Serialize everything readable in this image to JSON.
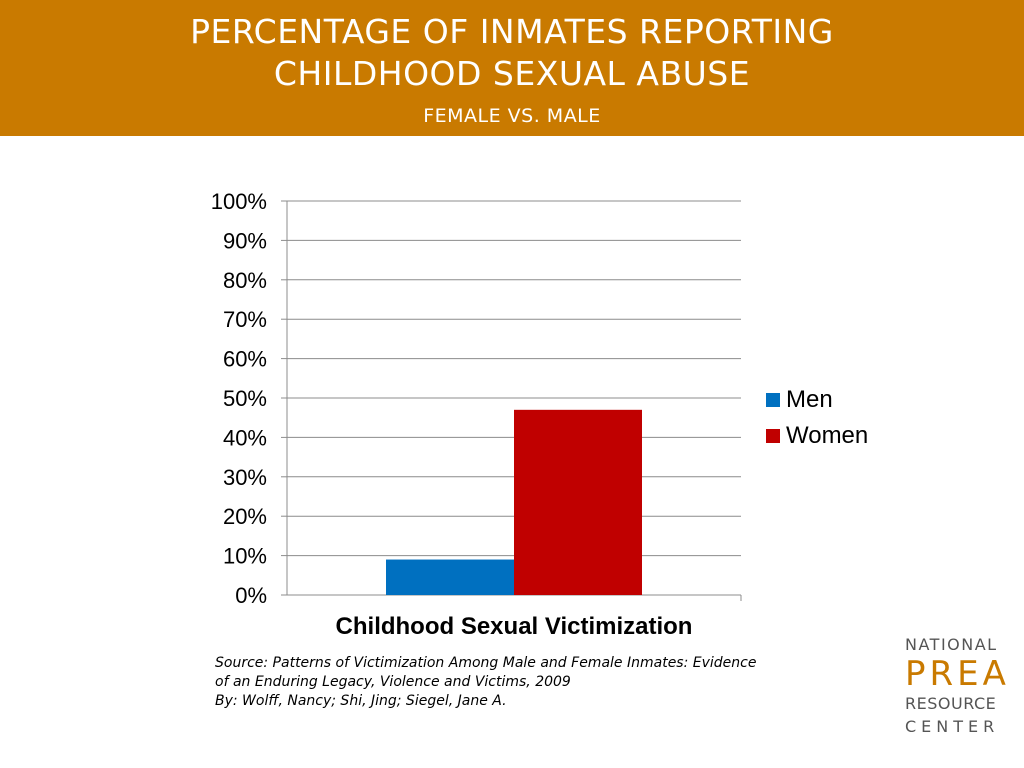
{
  "header": {
    "title_line1": "PERCENTAGE OF INMATES REPORTING",
    "title_line2": "CHILDHOOD SEXUAL ABUSE",
    "subtitle": "FEMALE VS. MALE",
    "background_color": "#c97a00"
  },
  "chart_data": {
    "type": "bar",
    "categories": [
      "Childhood Sexual Victimization"
    ],
    "series": [
      {
        "name": "Men",
        "values": [
          9
        ],
        "color": "#0070c0"
      },
      {
        "name": "Women",
        "values": [
          47
        ],
        "color": "#c00000"
      }
    ],
    "xlabel": "Childhood Sexual Victimization",
    "ylabel": "",
    "ylim": [
      0,
      100
    ],
    "yticks": [
      "0%",
      "10%",
      "20%",
      "30%",
      "40%",
      "50%",
      "60%",
      "70%",
      "80%",
      "90%",
      "100%"
    ],
    "grid": true,
    "legend_position": "right"
  },
  "source": {
    "line1": "Source: Patterns of Victimization Among Male and Female Inmates: Evidence",
    "line2": "of an Enduring Legacy, Violence and Victims, 2009",
    "line3": "By: Wolff, Nancy; Shi, Jing; Siegel, Jane A."
  },
  "logo": {
    "line1": "NATIONAL",
    "line2": "PREA",
    "line3": "RESOURCE",
    "line4": "CENTER"
  }
}
